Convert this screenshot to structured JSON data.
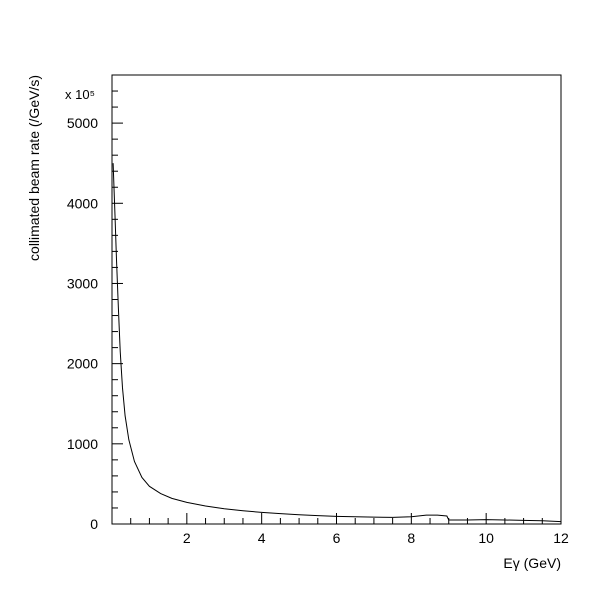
{
  "chart_data": {
    "type": "line",
    "xlabel": "Eγ (GeV)",
    "ylabel": "collimated beam rate (/GeV/s)",
    "y_scale_factor": "x 10⁵",
    "xlim": [
      0.0,
      12.0
    ],
    "ylim": [
      0,
      5600
    ],
    "x_ticks": [
      2,
      4,
      6,
      8,
      10,
      12
    ],
    "y_ticks": [
      0,
      1000,
      2000,
      3000,
      4000,
      5000
    ],
    "grid": false,
    "line_color": "#000000",
    "series": [
      {
        "x": [
          0.03,
          0.08,
          0.12,
          0.17,
          0.22,
          0.28,
          0.35,
          0.45,
          0.6,
          0.8,
          1.0,
          1.3,
          1.6,
          2.0,
          2.5,
          3.0,
          3.5,
          4.0,
          4.5,
          5.0,
          5.5,
          6.0,
          6.5,
          7.0,
          7.5,
          8.0,
          8.4,
          8.7,
          8.95,
          9.0,
          9.5,
          10.0,
          10.5,
          11.0,
          11.5,
          12.0
        ],
        "y": [
          4500,
          3850,
          3300,
          2700,
          2150,
          1700,
          1350,
          1050,
          780,
          580,
          470,
          380,
          320,
          270,
          225,
          190,
          165,
          145,
          130,
          115,
          105,
          95,
          90,
          85,
          83,
          90,
          110,
          110,
          100,
          50,
          50,
          55,
          50,
          45,
          40,
          30
        ]
      }
    ]
  }
}
